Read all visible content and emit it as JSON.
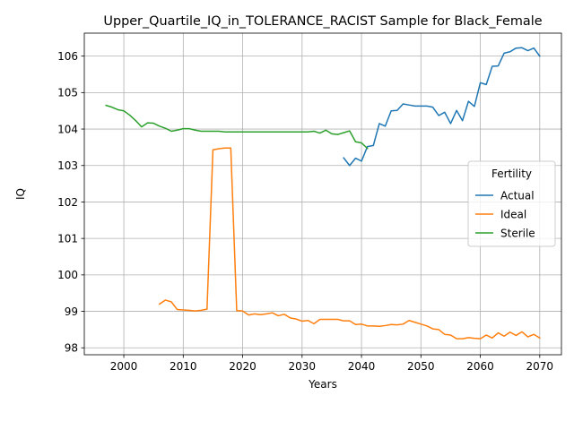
{
  "chart_data": {
    "type": "line",
    "title": "Upper_Quartile_IQ_in_TOLERANCE_RACIST Sample for Black_Female",
    "xlabel": "Years",
    "ylabel": "IQ",
    "xlim": [
      1993.35,
      2073.65
    ],
    "ylim": [
      97.81,
      106.63
    ],
    "xticks": [
      2000,
      2010,
      2020,
      2030,
      2040,
      2050,
      2060,
      2070
    ],
    "yticks": [
      98,
      99,
      100,
      101,
      102,
      103,
      104,
      105,
      106
    ],
    "grid": true,
    "legend": {
      "title": "Fertility",
      "placement": "center-right"
    },
    "series": [
      {
        "name": "Actual",
        "color": "#1f77b4",
        "x": [
          2037,
          2038,
          2039,
          2040,
          2041,
          2042,
          2043,
          2044,
          2045,
          2046,
          2047,
          2048,
          2049,
          2050,
          2051,
          2052,
          2053,
          2054,
          2055,
          2056,
          2057,
          2058,
          2059,
          2060,
          2061,
          2062,
          2063,
          2064,
          2065,
          2066,
          2067,
          2068,
          2069,
          2070
        ],
        "y": [
          103.21,
          103.0,
          103.2,
          103.12,
          103.52,
          103.55,
          104.15,
          104.08,
          104.5,
          104.51,
          104.69,
          104.66,
          104.63,
          104.63,
          104.63,
          104.6,
          104.37,
          104.46,
          104.15,
          104.51,
          104.23,
          104.76,
          104.62,
          105.27,
          105.22,
          105.72,
          105.73,
          106.08,
          106.12,
          106.22,
          106.23,
          106.15,
          106.22,
          106.0
        ]
      },
      {
        "name": "Ideal",
        "color": "#ff7f0e",
        "x": [
          2006,
          2007,
          2008,
          2009,
          2010,
          2011,
          2012,
          2013,
          2014,
          2015,
          2016,
          2017,
          2018,
          2019,
          2020,
          2021,
          2022,
          2023,
          2024,
          2025,
          2026,
          2027,
          2028,
          2029,
          2030,
          2031,
          2032,
          2033,
          2034,
          2035,
          2036,
          2037,
          2038,
          2039,
          2040,
          2041,
          2042,
          2043,
          2044,
          2045,
          2046,
          2047,
          2048,
          2049,
          2050,
          2051,
          2052,
          2053,
          2054,
          2055,
          2056,
          2057,
          2058,
          2059,
          2060,
          2061,
          2062,
          2063,
          2064,
          2065,
          2066,
          2067,
          2068,
          2069,
          2070
        ],
        "y": [
          99.2,
          99.31,
          99.26,
          99.05,
          99.04,
          99.03,
          99.01,
          99.03,
          99.06,
          103.43,
          103.46,
          103.48,
          103.48,
          99.02,
          99.01,
          98.9,
          98.93,
          98.91,
          98.93,
          98.96,
          98.88,
          98.92,
          98.82,
          98.79,
          98.73,
          98.75,
          98.66,
          98.78,
          98.78,
          98.78,
          98.78,
          98.74,
          98.74,
          98.64,
          98.65,
          98.6,
          98.6,
          98.59,
          98.61,
          98.64,
          98.63,
          98.65,
          98.75,
          98.7,
          98.65,
          98.6,
          98.52,
          98.5,
          98.37,
          98.35,
          98.25,
          98.25,
          98.28,
          98.26,
          98.25,
          98.35,
          98.27,
          98.41,
          98.32,
          98.43,
          98.34,
          98.44,
          98.3,
          98.37,
          98.27
        ]
      },
      {
        "name": "Sterile",
        "color": "#2ca02c",
        "x": [
          1997,
          1998,
          1999,
          2000,
          2001,
          2002,
          2003,
          2004,
          2005,
          2006,
          2007,
          2008,
          2009,
          2010,
          2011,
          2012,
          2013,
          2014,
          2015,
          2016,
          2017,
          2018,
          2019,
          2020,
          2021,
          2022,
          2023,
          2024,
          2025,
          2026,
          2027,
          2028,
          2029,
          2030,
          2031,
          2032,
          2033,
          2034,
          2035,
          2036,
          2037,
          2038,
          2039,
          2040,
          2041
        ],
        "y": [
          104.65,
          104.6,
          104.53,
          104.5,
          104.38,
          104.23,
          104.06,
          104.17,
          104.16,
          104.08,
          104.02,
          103.94,
          103.97,
          104.01,
          104.01,
          103.97,
          103.94,
          103.94,
          103.94,
          103.94,
          103.92,
          103.92,
          103.92,
          103.92,
          103.92,
          103.92,
          103.92,
          103.92,
          103.92,
          103.92,
          103.92,
          103.92,
          103.92,
          103.92,
          103.92,
          103.94,
          103.89,
          103.97,
          103.87,
          103.85,
          103.9,
          103.95,
          103.65,
          103.62,
          103.47
        ]
      }
    ]
  }
}
